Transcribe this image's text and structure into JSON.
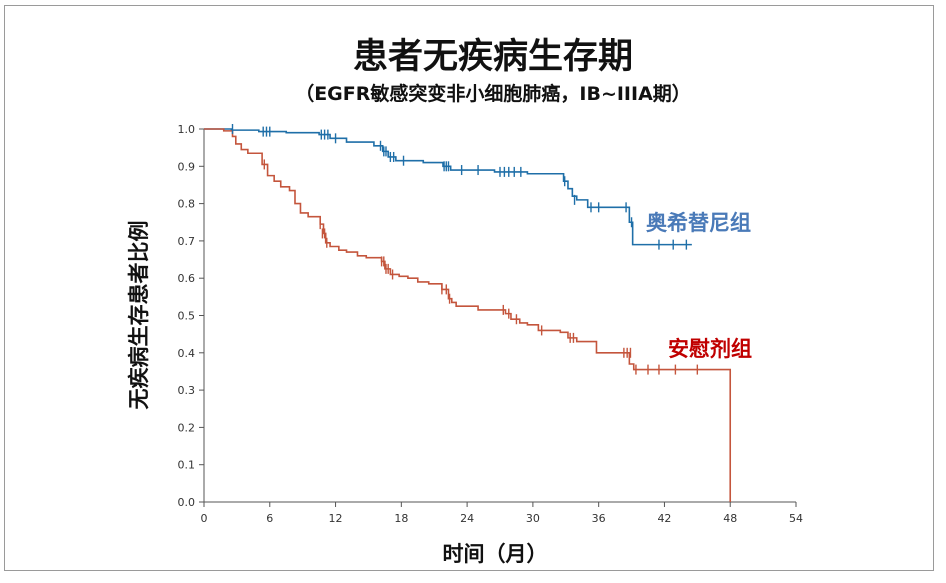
{
  "chart_data": {
    "type": "line",
    "subtype": "kaplan-meier",
    "title": "患者无疾病生存期",
    "subtitle": "（EGFR敏感突变非小细胞肺癌，IB~IIIA期）",
    "xlabel": "时间（月）",
    "ylabel": "无疾病生存患者比例",
    "xlim": [
      0,
      54
    ],
    "ylim": [
      0.0,
      1.0
    ],
    "xticks": [
      0,
      6,
      12,
      18,
      24,
      30,
      36,
      42,
      48,
      54
    ],
    "yticks": [
      0.0,
      0.1,
      0.2,
      0.3,
      0.4,
      0.5,
      0.6,
      0.7,
      0.8,
      0.9,
      1.0
    ],
    "series": [
      {
        "name": "奥希替尼组",
        "color": "#1f6fa8",
        "label_color": "#4a7ab8",
        "steps": [
          [
            0,
            1.0
          ],
          [
            2.5,
            0.997
          ],
          [
            5,
            0.993
          ],
          [
            7.5,
            0.99
          ],
          [
            10.5,
            0.985
          ],
          [
            11.5,
            0.975
          ],
          [
            13,
            0.965
          ],
          [
            15.5,
            0.955
          ],
          [
            16.3,
            0.94
          ],
          [
            16.8,
            0.925
          ],
          [
            17.5,
            0.915
          ],
          [
            20,
            0.91
          ],
          [
            21.8,
            0.9
          ],
          [
            22.5,
            0.89
          ],
          [
            26.5,
            0.885
          ],
          [
            29.5,
            0.88
          ],
          [
            32.8,
            0.86
          ],
          [
            33.2,
            0.84
          ],
          [
            33.6,
            0.82
          ],
          [
            34,
            0.81
          ],
          [
            35,
            0.79
          ],
          [
            38.8,
            0.75
          ],
          [
            39.1,
            0.69
          ],
          [
            44.5,
            0.69
          ]
        ],
        "censors": [
          [
            2.6,
            1.0
          ],
          [
            5.4,
            0.993
          ],
          [
            5.7,
            0.993
          ],
          [
            6.0,
            0.993
          ],
          [
            10.7,
            0.985
          ],
          [
            11.0,
            0.985
          ],
          [
            11.3,
            0.985
          ],
          [
            12.0,
            0.975
          ],
          [
            16.1,
            0.955
          ],
          [
            16.4,
            0.94
          ],
          [
            16.6,
            0.94
          ],
          [
            17.0,
            0.925
          ],
          [
            17.3,
            0.925
          ],
          [
            18.2,
            0.915
          ],
          [
            21.9,
            0.9
          ],
          [
            22.1,
            0.9
          ],
          [
            22.3,
            0.9
          ],
          [
            23.5,
            0.89
          ],
          [
            25.0,
            0.89
          ],
          [
            27.0,
            0.885
          ],
          [
            27.4,
            0.885
          ],
          [
            27.8,
            0.885
          ],
          [
            28.3,
            0.885
          ],
          [
            28.9,
            0.885
          ],
          [
            32.9,
            0.86
          ],
          [
            33.8,
            0.81
          ],
          [
            35.3,
            0.79
          ],
          [
            36.0,
            0.79
          ],
          [
            38.5,
            0.79
          ],
          [
            39.0,
            0.75
          ],
          [
            41.5,
            0.69
          ],
          [
            42.8,
            0.69
          ],
          [
            44.0,
            0.69
          ]
        ]
      },
      {
        "name": "安慰剂组",
        "color": "#c4553c",
        "label_color": "#c00000",
        "steps": [
          [
            0,
            1.0
          ],
          [
            1.8,
            0.995
          ],
          [
            2.6,
            0.98
          ],
          [
            2.9,
            0.96
          ],
          [
            3.4,
            0.945
          ],
          [
            4.0,
            0.935
          ],
          [
            5.3,
            0.905
          ],
          [
            5.8,
            0.875
          ],
          [
            6.4,
            0.86
          ],
          [
            7.0,
            0.845
          ],
          [
            7.8,
            0.835
          ],
          [
            8.3,
            0.8
          ],
          [
            8.8,
            0.775
          ],
          [
            9.5,
            0.765
          ],
          [
            10.6,
            0.745
          ],
          [
            10.9,
            0.72
          ],
          [
            11.1,
            0.695
          ],
          [
            11.5,
            0.685
          ],
          [
            12.3,
            0.675
          ],
          [
            13.0,
            0.67
          ],
          [
            14.0,
            0.66
          ],
          [
            14.8,
            0.655
          ],
          [
            16.2,
            0.645
          ],
          [
            16.5,
            0.625
          ],
          [
            17.0,
            0.61
          ],
          [
            17.8,
            0.605
          ],
          [
            18.6,
            0.6
          ],
          [
            19.5,
            0.59
          ],
          [
            20.5,
            0.585
          ],
          [
            21.7,
            0.57
          ],
          [
            22.3,
            0.545
          ],
          [
            22.6,
            0.535
          ],
          [
            23.0,
            0.525
          ],
          [
            25.0,
            0.515
          ],
          [
            27.5,
            0.505
          ],
          [
            28.0,
            0.49
          ],
          [
            28.8,
            0.48
          ],
          [
            29.5,
            0.475
          ],
          [
            30.5,
            0.46
          ],
          [
            32.5,
            0.455
          ],
          [
            33.2,
            0.44
          ],
          [
            34.0,
            0.43
          ],
          [
            35.8,
            0.4
          ],
          [
            38.8,
            0.37
          ],
          [
            39.2,
            0.355
          ],
          [
            48.0,
            0.0
          ]
        ],
        "censors": [
          [
            5.5,
            0.905
          ],
          [
            10.6,
            0.745
          ],
          [
            10.8,
            0.72
          ],
          [
            11.0,
            0.72
          ],
          [
            11.2,
            0.695
          ],
          [
            16.2,
            0.645
          ],
          [
            16.4,
            0.645
          ],
          [
            16.6,
            0.625
          ],
          [
            16.8,
            0.625
          ],
          [
            17.2,
            0.61
          ],
          [
            21.7,
            0.57
          ],
          [
            22.1,
            0.57
          ],
          [
            22.4,
            0.545
          ],
          [
            27.3,
            0.515
          ],
          [
            27.8,
            0.505
          ],
          [
            28.5,
            0.49
          ],
          [
            30.8,
            0.46
          ],
          [
            33.4,
            0.44
          ],
          [
            33.7,
            0.44
          ],
          [
            38.3,
            0.4
          ],
          [
            38.6,
            0.4
          ],
          [
            38.9,
            0.4
          ],
          [
            39.4,
            0.355
          ],
          [
            40.5,
            0.355
          ],
          [
            41.5,
            0.355
          ],
          [
            43.0,
            0.355
          ],
          [
            45.0,
            0.355
          ]
        ]
      }
    ]
  }
}
